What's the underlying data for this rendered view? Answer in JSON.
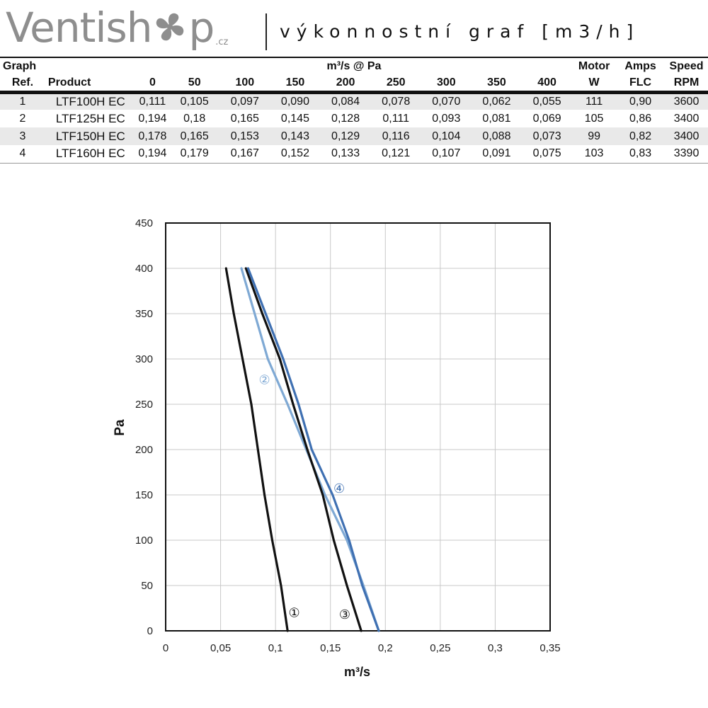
{
  "header": {
    "logo_prefix": "Ventish",
    "logo_suffix": "p",
    "logo_tld": ".cz",
    "subtitle": "výkonnostní graf [m3/h]",
    "logo_icon": "fan-icon"
  },
  "table": {
    "graph_label": "Graph",
    "ref_label": "Ref.",
    "product_label": "Product",
    "group_label": "m³/s @ Pa",
    "pressures": [
      "0",
      "50",
      "100",
      "150",
      "200",
      "250",
      "300",
      "350",
      "400"
    ],
    "motor_label": "Motor",
    "motor_unit": "W",
    "amps_label": "Amps",
    "amps_unit": "FLC",
    "speed_label": "Speed",
    "speed_unit": "RPM",
    "rows": [
      {
        "ref": "1",
        "product": "LTF100H EC",
        "values": [
          "0,111",
          "0,105",
          "0,097",
          "0,090",
          "0,084",
          "0,078",
          "0,070",
          "0,062",
          "0,055"
        ],
        "motor": "111",
        "amps": "0,90",
        "speed": "3600"
      },
      {
        "ref": "2",
        "product": "LTF125H EC",
        "values": [
          "0,194",
          "0,18",
          "0,165",
          "0,145",
          "0,128",
          "0,111",
          "0,093",
          "0,081",
          "0,069"
        ],
        "motor": "105",
        "amps": "0,86",
        "speed": "3400"
      },
      {
        "ref": "3",
        "product": "LTF150H EC",
        "values": [
          "0,178",
          "0,165",
          "0,153",
          "0,143",
          "0,129",
          "0,116",
          "0,104",
          "0,088",
          "0,073"
        ],
        "motor": "99",
        "amps": "0,82",
        "speed": "3400"
      },
      {
        "ref": "4",
        "product": "LTF160H EC",
        "values": [
          "0,194",
          "0,179",
          "0,167",
          "0,152",
          "0,133",
          "0,121",
          "0,107",
          "0,091",
          "0,075"
        ],
        "motor": "103",
        "amps": "0,83",
        "speed": "3390"
      }
    ]
  },
  "chart_data": {
    "type": "line",
    "xlabel": "m³/s",
    "ylabel": "Pa",
    "xlim": [
      0,
      0.35
    ],
    "ylim": [
      0,
      450
    ],
    "x_ticks": [
      0,
      0.05,
      0.1,
      0.15,
      0.2,
      0.25,
      0.3,
      0.35
    ],
    "x_tick_labels": [
      "0",
      "0,05",
      "0,1",
      "0,15",
      "0,2",
      "0,25",
      "0,3",
      "0,35"
    ],
    "y_ticks": [
      0,
      50,
      100,
      150,
      200,
      250,
      300,
      350,
      400,
      450
    ],
    "y_tick_labels": [
      "0",
      "50",
      "100",
      "150",
      "200",
      "250",
      "300",
      "350",
      "400",
      "450"
    ],
    "grid": true,
    "pressure": [
      0,
      50,
      100,
      150,
      200,
      250,
      300,
      350,
      400
    ],
    "series": [
      {
        "marker": "①",
        "color": "#111111",
        "flow": [
          0.111,
          0.105,
          0.097,
          0.09,
          0.084,
          0.078,
          0.07,
          0.062,
          0.055
        ],
        "label_at": [
          0.117,
          20
        ]
      },
      {
        "marker": "②",
        "color": "#7fa9d4",
        "flow": [
          0.194,
          0.18,
          0.165,
          0.145,
          0.128,
          0.111,
          0.093,
          0.081,
          0.069
        ],
        "label_at": [
          0.09,
          277
        ]
      },
      {
        "marker": "③",
        "color": "#111111",
        "flow": [
          0.178,
          0.165,
          0.153,
          0.143,
          0.129,
          0.116,
          0.104,
          0.088,
          0.073
        ],
        "label_at": [
          0.163,
          18
        ]
      },
      {
        "marker": "④",
        "color": "#3f70b2",
        "flow": [
          0.194,
          0.179,
          0.167,
          0.152,
          0.133,
          0.121,
          0.107,
          0.091,
          0.075
        ],
        "label_at": [
          0.158,
          157
        ]
      }
    ]
  }
}
